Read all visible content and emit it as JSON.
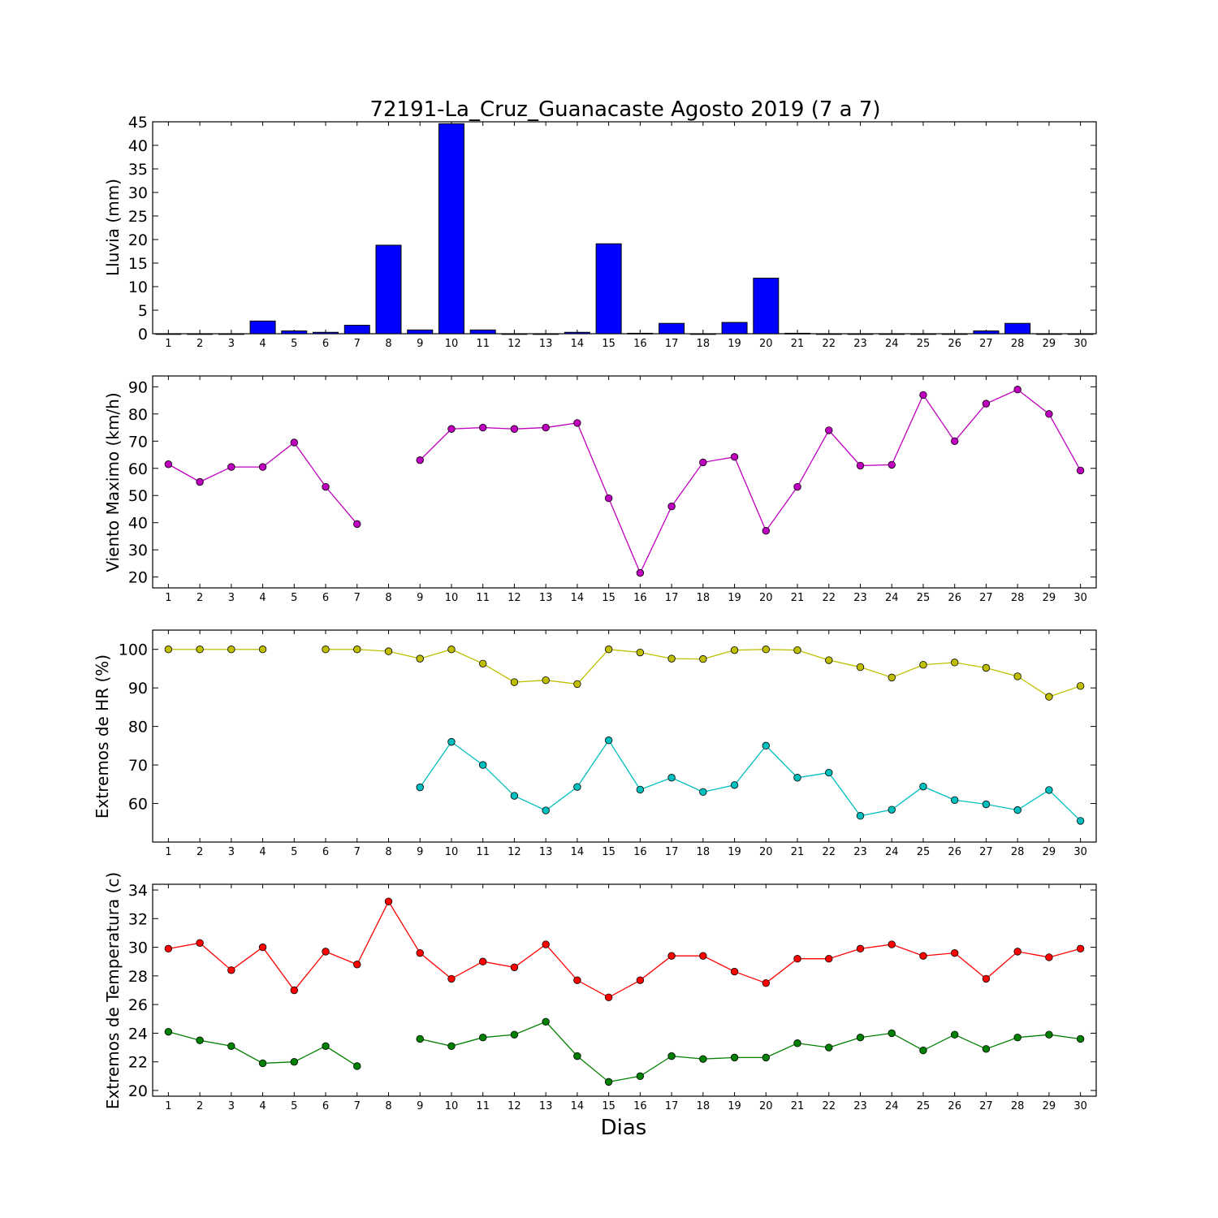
{
  "chart_data": [
    {
      "type": "bar",
      "title": "72191-La_Cruz_Guanacaste Agosto 2019  (7 a 7)",
      "ylabel": "Lluvia (mm)",
      "xlabel": "",
      "ylim": [
        0,
        45
      ],
      "yticks": [
        0,
        5,
        10,
        15,
        20,
        25,
        30,
        35,
        40,
        45
      ],
      "x": [
        1,
        2,
        3,
        4,
        5,
        6,
        7,
        8,
        9,
        10,
        11,
        12,
        13,
        14,
        15,
        16,
        17,
        18,
        19,
        20,
        21,
        22,
        23,
        24,
        25,
        26,
        27,
        28,
        29,
        30
      ],
      "series": [
        {
          "color": "#0000ff",
          "values": [
            0,
            0,
            0,
            2.7,
            0.6,
            0.3,
            1.8,
            18.8,
            0.8,
            44.6,
            0.8,
            0,
            0,
            0.3,
            19.1,
            0.1,
            2.2,
            0,
            2.4,
            11.8,
            0.1,
            0,
            0,
            0,
            0,
            0,
            0.6,
            2.2,
            0,
            0
          ]
        }
      ]
    },
    {
      "type": "line",
      "ylabel": "Viento Maximo (km/h)",
      "ylim": [
        16,
        94
      ],
      "yticks": [
        20,
        30,
        40,
        50,
        60,
        70,
        80,
        90
      ],
      "x": [
        1,
        2,
        3,
        4,
        5,
        6,
        7,
        8,
        9,
        10,
        11,
        12,
        13,
        14,
        15,
        16,
        17,
        18,
        19,
        20,
        21,
        22,
        23,
        24,
        25,
        26,
        27,
        28,
        29,
        30
      ],
      "series": [
        {
          "color": "#bf00bf",
          "values": [
            61.5,
            55,
            60.5,
            60.5,
            69.5,
            53.2,
            39.5,
            null,
            63,
            74.5,
            75,
            74.5,
            75,
            76.7,
            49,
            21.5,
            46,
            62.2,
            64.2,
            37,
            53.2,
            74,
            61,
            61.3,
            87,
            70,
            83.8,
            89,
            80,
            59.2
          ]
        }
      ]
    },
    {
      "type": "line",
      "ylabel": "Extremos de HR (%)",
      "ylim": [
        50,
        105
      ],
      "yticks": [
        60,
        70,
        80,
        90,
        100
      ],
      "x": [
        1,
        2,
        3,
        4,
        5,
        6,
        7,
        8,
        9,
        10,
        11,
        12,
        13,
        14,
        15,
        16,
        17,
        18,
        19,
        20,
        21,
        22,
        23,
        24,
        25,
        26,
        27,
        28,
        29,
        30
      ],
      "series": [
        {
          "color": "#bfbf00",
          "values": [
            100,
            100,
            100,
            100,
            null,
            100,
            100,
            99.5,
            97.6,
            100,
            96.3,
            91.5,
            92,
            91,
            100,
            99.2,
            97.6,
            97.5,
            99.8,
            100,
            99.8,
            97.2,
            95.4,
            92.7,
            96,
            96.6,
            95.2,
            93,
            87.7,
            90.5
          ]
        },
        {
          "color": "#00bfbf",
          "values": [
            null,
            null,
            null,
            null,
            null,
            null,
            null,
            null,
            64.2,
            76,
            70,
            62,
            58.2,
            64.3,
            76.4,
            63.6,
            66.7,
            63,
            64.8,
            75,
            66.7,
            68,
            56.8,
            58.4,
            64.4,
            60.9,
            59.8,
            58.3,
            63.5,
            55.5
          ]
        }
      ]
    },
    {
      "type": "line",
      "ylabel": "Extremos de Temperatura (c)",
      "xlabel": "Dias",
      "ylim": [
        19.6,
        34.4
      ],
      "yticks": [
        20,
        22,
        24,
        26,
        28,
        30,
        32,
        34
      ],
      "x": [
        1,
        2,
        3,
        4,
        5,
        6,
        7,
        8,
        9,
        10,
        11,
        12,
        13,
        14,
        15,
        16,
        17,
        18,
        19,
        20,
        21,
        22,
        23,
        24,
        25,
        26,
        27,
        28,
        29,
        30
      ],
      "series": [
        {
          "color": "#ff0000",
          "values": [
            29.9,
            30.3,
            28.4,
            30,
            27,
            29.7,
            28.8,
            33.2,
            29.6,
            27.8,
            29,
            28.6,
            30.2,
            27.7,
            26.5,
            27.7,
            29.4,
            29.4,
            28.3,
            27.5,
            29.2,
            29.2,
            29.9,
            30.2,
            29.4,
            29.6,
            27.8,
            29.7,
            29.3,
            29.9
          ]
        },
        {
          "color": "#008000",
          "values": [
            24.1,
            23.5,
            23.1,
            21.9,
            22,
            23.1,
            21.7,
            null,
            23.6,
            23.1,
            23.7,
            23.9,
            24.8,
            22.4,
            20.6,
            21,
            22.4,
            22.2,
            22.3,
            22.3,
            23.3,
            23,
            23.7,
            24,
            22.8,
            23.9,
            22.9,
            23.7,
            23.9,
            23.6
          ]
        }
      ]
    }
  ]
}
